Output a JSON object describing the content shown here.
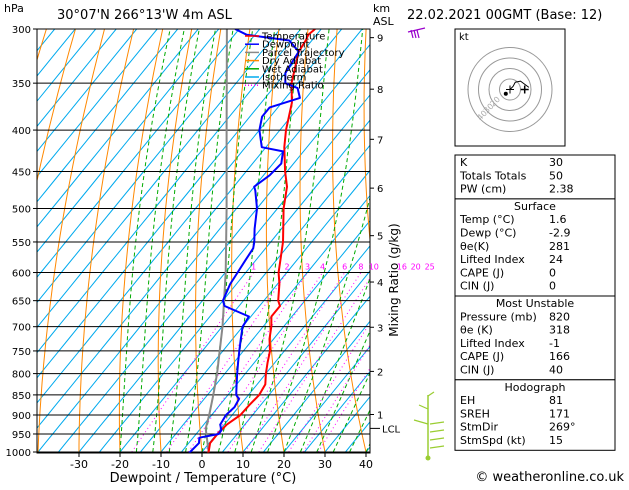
{
  "header": {
    "hpa_unit": "hPa",
    "location": "30°07'N  266°13'W  4m  ASL",
    "km_unit": "km",
    "asl_unit": "ASL",
    "valid_time": "22.02.2021  00GMT  (Base: 12)"
  },
  "footer": {
    "copyright": "© weatheronline.co.uk"
  },
  "colors": {
    "temperature": "#ff0000",
    "dewpoint": "#0000ff",
    "parcel": "#888888",
    "dry_adiabat": "#ff8800",
    "wet_adiabat": "#00aa00",
    "isotherm": "#00aaee",
    "mixing_ratio": "#ff00ff",
    "wind_barb": "#9acd32",
    "wind_barb_top": "#9900cc"
  },
  "chart_data": {
    "type": "line",
    "subtype": "skew-t log-p sounding",
    "xlabel": "Dewpoint / Temperature (°C)",
    "ylabel_left": "hPa",
    "ylabel_right": "Mixing Ratio (g/kg)",
    "x_ticks": [
      "-30",
      "-20",
      "-10",
      "0",
      "10",
      "20",
      "30",
      "40"
    ],
    "x_tick_values": [
      -30,
      -20,
      -10,
      0,
      10,
      20,
      30,
      40
    ],
    "xlim": [
      -35,
      40
    ],
    "pressure_levels": [
      "300",
      "350",
      "400",
      "450",
      "500",
      "550",
      "600",
      "650",
      "700",
      "750",
      "800",
      "850",
      "900",
      "950",
      "1000"
    ],
    "ylim_hpa": [
      1000,
      300
    ],
    "km_ticks": [
      "1",
      "2",
      "3",
      "4",
      "5",
      "6",
      "7",
      "8",
      "9"
    ],
    "km_tick_values": [
      1,
      2,
      3,
      4,
      5,
      6,
      7,
      8,
      9
    ],
    "lcl_label": "LCL",
    "lcl_pressure": 935,
    "mixing_ratio_labels": [
      "1",
      "2",
      "3",
      "4",
      "6",
      "8",
      "10",
      "16",
      "20",
      "25"
    ],
    "mixing_ratio_values": [
      1,
      2,
      3,
      4,
      6,
      8,
      10,
      16,
      20,
      25
    ],
    "legend": {
      "position": "top-right of diagram",
      "items": [
        "Temperature",
        "Dewpoint",
        "Parcel Trajectory",
        "Dry Adiabat",
        "Wet Adiabat",
        "Isotherm",
        "Mixing Ratio"
      ]
    },
    "grid": true,
    "series": [
      {
        "name": "Temperature",
        "points": [
          [
            1010,
            1.6
          ],
          [
            1000,
            1.6
          ],
          [
            975,
            0.2
          ],
          [
            950,
            0.2
          ],
          [
            925,
            0.6
          ],
          [
            900,
            2.0
          ],
          [
            875,
            2.2
          ],
          [
            850,
            2.6
          ],
          [
            825,
            2.0
          ],
          [
            800,
            0.0
          ],
          [
            775,
            -1.8
          ],
          [
            750,
            -3.5
          ],
          [
            725,
            -6.0
          ],
          [
            700,
            -8.0
          ],
          [
            680,
            -10.0
          ],
          [
            660,
            -10.0
          ],
          [
            650,
            -11.5
          ],
          [
            620,
            -14.5
          ],
          [
            600,
            -17.0
          ],
          [
            550,
            -22.0
          ],
          [
            500,
            -28.5
          ],
          [
            470,
            -32.0
          ],
          [
            450,
            -35.5
          ],
          [
            420,
            -40.5
          ],
          [
            400,
            -43.5
          ],
          [
            370,
            -47.5
          ],
          [
            350,
            -51.5
          ],
          [
            320,
            -56.0
          ],
          [
            310,
            -56.5
          ],
          [
            305,
            -57.0
          ],
          [
            300,
            -56.5
          ]
        ]
      },
      {
        "name": "Dewpoint",
        "points": [
          [
            1010,
            -2.9
          ],
          [
            1000,
            -2.9
          ],
          [
            975,
            -2.5
          ],
          [
            960,
            -3.5
          ],
          [
            950,
            0.5
          ],
          [
            940,
            0.4
          ],
          [
            925,
            -1.0
          ],
          [
            900,
            -1.5
          ],
          [
            880,
            -1.0
          ],
          [
            860,
            -1.5
          ],
          [
            850,
            -3.0
          ],
          [
            825,
            -5.0
          ],
          [
            800,
            -7.0
          ],
          [
            775,
            -9.0
          ],
          [
            750,
            -11.0
          ],
          [
            725,
            -13.0
          ],
          [
            700,
            -15.0
          ],
          [
            680,
            -15.5
          ],
          [
            660,
            -23.5
          ],
          [
            650,
            -25.0
          ],
          [
            620,
            -26.5
          ],
          [
            600,
            -27.0
          ],
          [
            580,
            -27.5
          ],
          [
            560,
            -28.0
          ],
          [
            550,
            -29.0
          ],
          [
            530,
            -31.5
          ],
          [
            500,
            -35.0
          ],
          [
            475,
            -39.0
          ],
          [
            470,
            -40.0
          ],
          [
            455,
            -38.5
          ],
          [
            440,
            -38.0
          ],
          [
            425,
            -40.0
          ],
          [
            420,
            -46.0
          ],
          [
            400,
            -50.0
          ],
          [
            385,
            -52.0
          ],
          [
            375,
            -52.0
          ],
          [
            365,
            -46.5
          ],
          [
            355,
            -49.0
          ],
          [
            350,
            -53.0
          ],
          [
            340,
            -55.0
          ],
          [
            320,
            -56.0
          ],
          [
            310,
            -60.5
          ],
          [
            305,
            -72.0
          ],
          [
            300,
            -76.0
          ]
        ]
      },
      {
        "name": "Parcel Trajectory",
        "points": [
          [
            1000,
            1.6
          ],
          [
            935,
            -3.8
          ],
          [
            900,
            -5.6
          ],
          [
            850,
            -8.6
          ],
          [
            800,
            -11.9
          ],
          [
            700,
            -19.9
          ],
          [
            600,
            -29.9
          ],
          [
            500,
            -42.4
          ],
          [
            400,
            -58.0
          ],
          [
            300,
            -78.0
          ]
        ]
      }
    ]
  },
  "hodograph": {
    "unit_label": "kt",
    "ring_labels": [
      "40",
      "30",
      "20"
    ],
    "wind_points_kt": [
      [
        0,
        0
      ],
      [
        3,
        3
      ],
      [
        5,
        7
      ],
      [
        10,
        8
      ],
      [
        18,
        2
      ]
    ],
    "storm_motion_kt": [
      14,
      0
    ],
    "mean_wind_kt": [
      -4,
      -4
    ]
  },
  "indices": {
    "summary": [
      {
        "label": "K",
        "value": "30"
      },
      {
        "label": "Totals Totals",
        "value": "50"
      },
      {
        "label": "PW (cm)",
        "value": "2.38"
      }
    ],
    "surface": {
      "title": "Surface",
      "rows": [
        {
          "label": "Temp (°C)",
          "value": "1.6"
        },
        {
          "label": "Dewp (°C)",
          "value": "-2.9"
        },
        {
          "label": "θe(K)",
          "value": "281"
        },
        {
          "label": "Lifted Index",
          "value": "24"
        },
        {
          "label": "CAPE (J)",
          "value": "0"
        },
        {
          "label": "CIN (J)",
          "value": "0"
        }
      ]
    },
    "most_unstable": {
      "title": "Most Unstable",
      "rows": [
        {
          "label": "Pressure (mb)",
          "value": "820"
        },
        {
          "label": "θe (K)",
          "value": "318"
        },
        {
          "label": "Lifted Index",
          "value": "-1"
        },
        {
          "label": "CAPE (J)",
          "value": "166"
        },
        {
          "label": "CIN (J)",
          "value": "40"
        }
      ]
    },
    "hodograph_box": {
      "title": "Hodograph",
      "rows": [
        {
          "label": "EH",
          "value": "81"
        },
        {
          "label": "SREH",
          "value": "171"
        },
        {
          "label": "StmDir",
          "value": "269°"
        },
        {
          "label": "StmSpd (kt)",
          "value": "15"
        }
      ]
    }
  }
}
